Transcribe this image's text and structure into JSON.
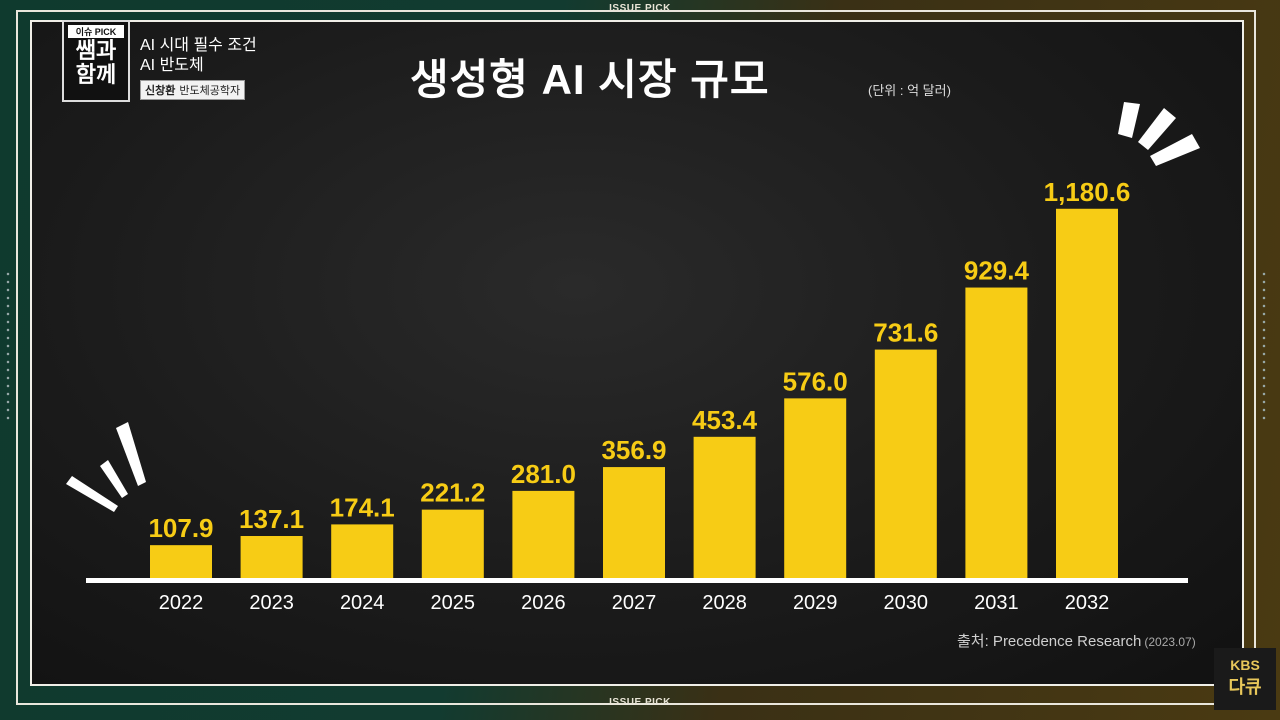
{
  "header": {
    "top_label": "ISSUE PICK",
    "bottom_label": "ISSUE PICK",
    "badge_top": "이슈 PICK",
    "badge_line2": "쌤과",
    "badge_line3": "함께",
    "topic_line1": "AI 시대 필수 조건",
    "topic_line2": "AI 반도체",
    "presenter_name": "신창환",
    "presenter_title": "반도체공학자"
  },
  "logo": {
    "line1": "KBS",
    "line2": "다큐"
  },
  "source": {
    "label": "출처: Precedence Research",
    "date": "(2023.07)"
  },
  "chart_data": {
    "type": "bar",
    "title": "생성형 AI 시장 규모",
    "unit": "(단위 : 억 달러)",
    "categories": [
      "2022",
      "2023",
      "2024",
      "2025",
      "2026",
      "2027",
      "2028",
      "2029",
      "2030",
      "2031",
      "2032"
    ],
    "values": [
      107.9,
      137.1,
      174.1,
      221.2,
      281.0,
      356.9,
      453.4,
      576.0,
      731.6,
      929.4,
      1180.6
    ],
    "value_labels": [
      "107.9",
      "137.1",
      "174.1",
      "221.2",
      "281.0",
      "356.9",
      "453.4",
      "576.0",
      "731.6",
      "929.4",
      "1,180.6"
    ],
    "bar_color": "#f7cc15",
    "ylim": [
      0,
      1250
    ]
  }
}
